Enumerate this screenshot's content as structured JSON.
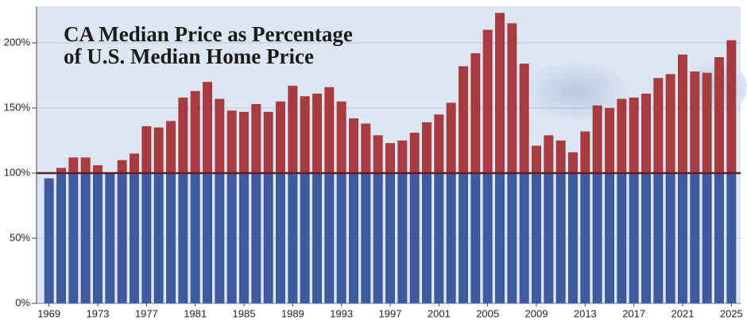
{
  "chart_data": {
    "type": "bar",
    "title_lines": [
      "CA Median Price as Percentage",
      "of U.S. Median Home Price"
    ],
    "x": [
      1969,
      1970,
      1971,
      1972,
      1973,
      1974,
      1975,
      1976,
      1977,
      1978,
      1979,
      1980,
      1981,
      1982,
      1983,
      1984,
      1985,
      1986,
      1987,
      1988,
      1989,
      1990,
      1991,
      1992,
      1993,
      1994,
      1995,
      1996,
      1997,
      1998,
      1999,
      2000,
      2001,
      2002,
      2003,
      2004,
      2005,
      2006,
      2007,
      2008,
      2009,
      2010,
      2011,
      2012,
      2013,
      2014,
      2015,
      2016,
      2017,
      2018,
      2019,
      2020,
      2021,
      2022,
      2023,
      2024,
      2025
    ],
    "values": [
      96,
      104,
      112,
      112,
      106,
      100,
      110,
      115,
      136,
      135,
      140,
      158,
      163,
      170,
      157,
      148,
      147,
      153,
      147,
      155,
      167,
      159,
      161,
      166,
      155,
      142,
      138,
      129,
      123,
      125,
      131,
      139,
      145,
      154,
      182,
      192,
      210,
      223,
      215,
      184,
      121,
      129,
      125,
      116,
      132,
      152,
      150,
      157,
      158,
      161,
      173,
      176,
      191,
      178,
      177,
      189,
      202
    ],
    "xlim": [
      1968.5,
      2025.5
    ],
    "xticks": [
      1969,
      1973,
      1977,
      1981,
      1985,
      1989,
      1993,
      1997,
      2001,
      2005,
      2009,
      2013,
      2017,
      2021,
      2025
    ],
    "ylim": [
      0,
      228
    ],
    "yticks": [
      {
        "value": 0,
        "label": "0%"
      },
      {
        "value": 50,
        "label": "50%"
      },
      {
        "value": 100,
        "label": "100%"
      },
      {
        "value": 150,
        "label": "150%"
      },
      {
        "value": 200,
        "label": "200%"
      }
    ],
    "reference_line": 100,
    "color_below": "#3f5b9f",
    "color_above": "#a63c3f",
    "grid": true
  }
}
